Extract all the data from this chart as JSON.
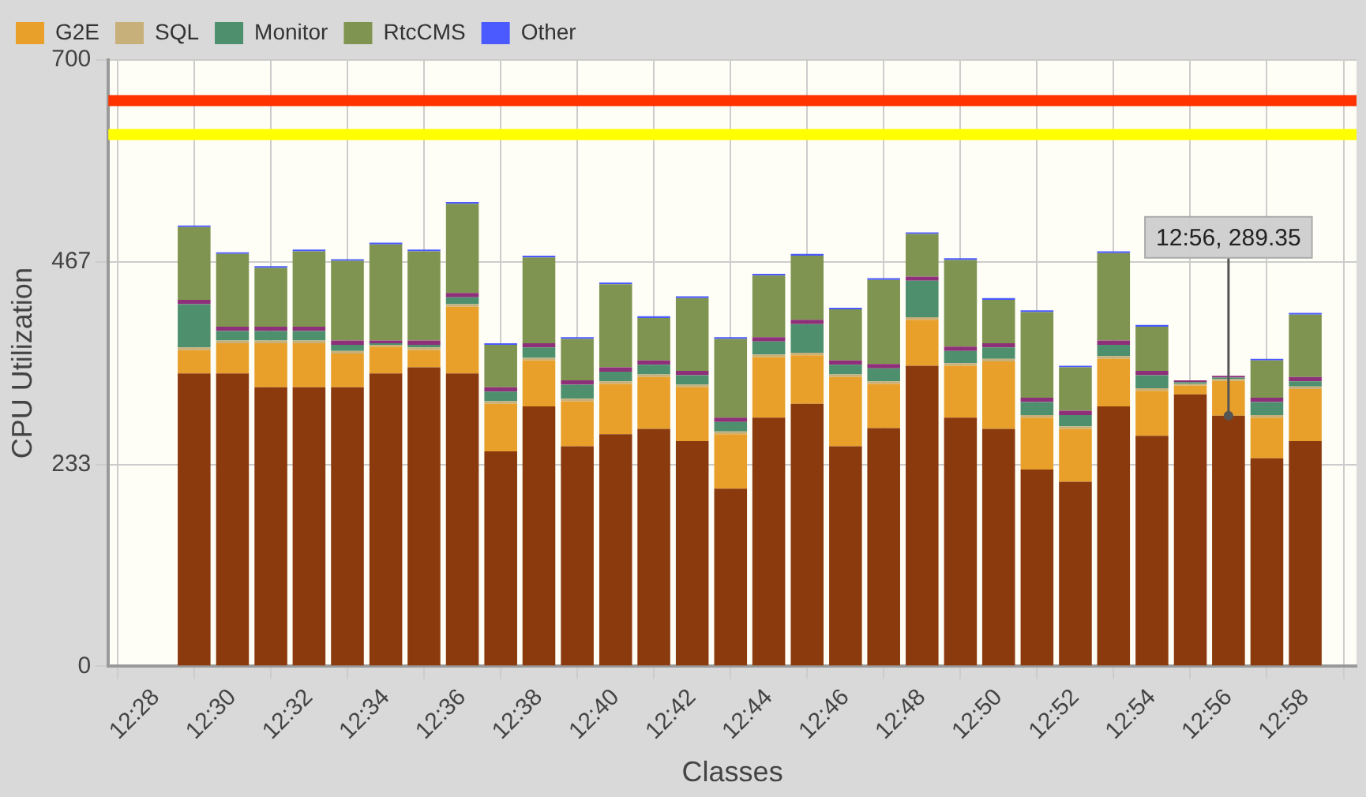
{
  "chart_data": {
    "type": "bar",
    "stacked": true,
    "xlabel": "Classes",
    "ylabel": "CPU Utilization",
    "x": [
      12.4833,
      12.5,
      12.5167,
      12.5333,
      12.55,
      12.5667,
      12.5833,
      12.6,
      12.6167,
      12.6333,
      12.65,
      12.6667,
      12.6833,
      12.7,
      12.7167,
      12.7333,
      12.75,
      12.7667,
      12.7833,
      12.8,
      12.8167,
      12.8333,
      12.85,
      12.8667,
      12.8833,
      12.9,
      12.9167,
      12.9333,
      12.95,
      12.9667
    ],
    "xlim": [
      12.446,
      12.989
    ],
    "xticks": [
      {
        "value": 12.4667,
        "label": "12:28"
      },
      {
        "value": 12.5,
        "label": "12:30"
      },
      {
        "value": 12.5333,
        "label": "12:32"
      },
      {
        "value": 12.5667,
        "label": "12:34"
      },
      {
        "value": 12.6,
        "label": "12:36"
      },
      {
        "value": 12.6333,
        "label": "12:38"
      },
      {
        "value": 12.6667,
        "label": "12:40"
      },
      {
        "value": 12.7,
        "label": "12:42"
      },
      {
        "value": 12.7333,
        "label": "12:44"
      },
      {
        "value": 12.7667,
        "label": "12:46"
      },
      {
        "value": 12.8,
        "label": "12:48"
      },
      {
        "value": 12.8333,
        "label": "12:50"
      },
      {
        "value": 12.8667,
        "label": "12:52"
      },
      {
        "value": 12.9,
        "label": "12:54"
      },
      {
        "value": 12.9333,
        "label": "12:56"
      },
      {
        "value": 12.9667,
        "label": "12:58"
      }
    ],
    "ylim": [
      0,
      700
    ],
    "yticks": [
      0,
      233,
      467,
      700
    ],
    "grid": true,
    "legend": "top left",
    "series": [
      {
        "color": "#8b3a0e",
        "values": [
          338,
          338,
          322,
          322,
          322,
          338,
          345,
          338,
          248,
          300,
          254,
          268,
          274,
          260,
          205,
          287,
          303,
          254,
          275,
          347,
          287,
          274,
          227,
          213,
          300,
          266,
          314,
          289.35,
          240,
          260
        ]
      },
      {
        "name": "G2E",
        "color": "#e8a02a",
        "values": [
          27,
          35,
          51,
          51,
          39,
          31,
          20,
          77,
          55,
          53,
          52,
          58,
          60,
          62,
          63,
          70,
          56,
          80,
          51,
          53,
          60,
          78,
          60,
          61,
          55,
          52,
          10,
          40,
          47,
          60
        ]
      },
      {
        "name": "SQL",
        "color": "#c8b07a",
        "values": [
          3,
          3,
          3,
          3,
          3,
          2,
          3,
          3,
          3,
          3,
          3,
          3,
          3,
          3,
          3,
          3,
          3,
          3,
          3,
          3,
          3,
          3,
          3,
          3,
          3,
          3,
          2,
          2,
          3,
          3
        ]
      },
      {
        "name": "Monitor",
        "color": "#4e8f6e",
        "values": [
          50,
          11,
          11,
          11,
          7,
          2,
          3,
          8,
          11,
          12,
          16,
          11,
          11,
          11,
          11,
          15,
          33,
          11,
          15,
          42,
          14,
          13,
          15,
          13,
          13,
          15,
          2,
          2,
          15,
          6
        ]
      },
      {
        "color": "#8e2f7a",
        "values": [
          5,
          5,
          5,
          5,
          5,
          3,
          5,
          5,
          5,
          5,
          5,
          5,
          5,
          5,
          5,
          5,
          5,
          5,
          5,
          5,
          5,
          5,
          5,
          5,
          5,
          5,
          2,
          2,
          5,
          5
        ]
      },
      {
        "name": "RtcCMS",
        "color": "#7f9450",
        "values": [
          84,
          84,
          68,
          87,
          92,
          111,
          103,
          103,
          49,
          99,
          48,
          96,
          49,
          84,
          91,
          71,
          74,
          59,
          97,
          49,
          100,
          50,
          99,
          50,
          101,
          51,
          0,
          0,
          43,
          72
        ]
      },
      {
        "name": "Other",
        "color": "#4a5aff",
        "values": [
          2,
          2,
          2,
          2,
          2,
          2,
          2,
          2,
          2,
          2,
          2,
          2,
          2,
          2,
          2,
          2,
          2,
          2,
          2,
          2,
          2,
          2,
          2,
          2,
          2,
          2,
          0,
          0,
          2,
          2
        ]
      }
    ],
    "ref_lines": [
      {
        "axis": "y",
        "value": 653,
        "color": "#ff3300"
      },
      {
        "axis": "y",
        "value": 614,
        "color": "#ffff00"
      }
    ],
    "annotations": [
      {
        "text": "12:56, 289.35",
        "x": 12.9333,
        "y": 289.35
      }
    ]
  }
}
